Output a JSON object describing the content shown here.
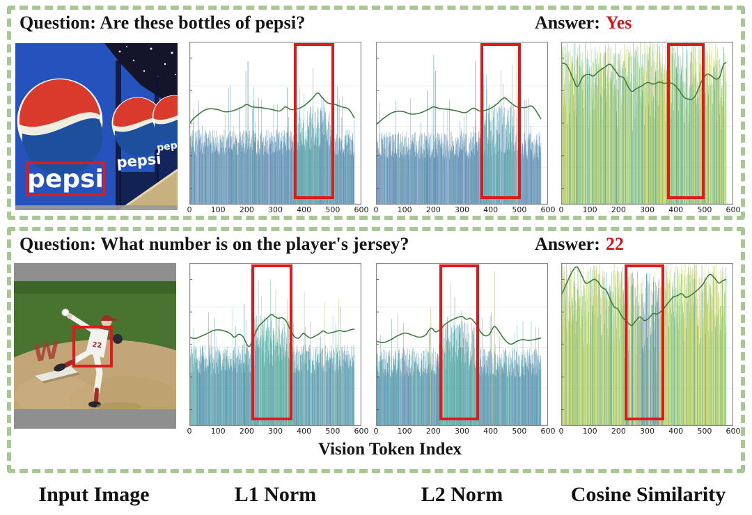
{
  "panels": [
    {
      "question": "Question: Are these bottles of pepsi?",
      "answer_label": "Answer:",
      "answer": "Yes"
    },
    {
      "question": "Question: What number is on the player's jersey?",
      "answer_label": "Answer:",
      "answer": "22"
    }
  ],
  "footer_labels": [
    "Input Image",
    "L1 Norm",
    "L2 Norm",
    "Cosine Similarity"
  ],
  "x_axis_title": "Vision Token Index",
  "images": {
    "pepsi_wordmark": "pepsi",
    "jersey_number": "22",
    "mound_logo": "W"
  },
  "colors": {
    "highlight_box": "#e01a1a",
    "panel_border": "#a9c795",
    "answer_text": "#d11a1a",
    "line_green": "#3e7c3e",
    "bar_blue": "#4a7ba6",
    "bar_teal": "#3f9d9b",
    "bar_yellow_green": "#ccd65e"
  },
  "chart_data": [
    {
      "name": "l1-norm-example1",
      "type": "bar",
      "n": 576,
      "x_domain": [
        0,
        600
      ],
      "x_ticks": [
        "0",
        "100",
        "200",
        "300",
        "400",
        "500",
        "600"
      ],
      "highlight_box": [
        365,
        505
      ],
      "seed": 7,
      "bars": {
        "h": [
          0.3,
          0.46
        ],
        "pow": 1,
        "tall_p": 0.05,
        "palette": [
          [
            "#4a7ba6",
            0.62
          ],
          [
            "#6f9cc4",
            0.16
          ],
          [
            "#8fb3d1",
            0.08
          ],
          [
            "#3f9d9b",
            0.14
          ]
        ],
        "box_h": [
          0.32,
          0.6
        ],
        "box_palette": [
          [
            "#3f9d9b",
            0.48
          ],
          [
            "#4a7ba6",
            0.3
          ],
          [
            "#57b0ad",
            0.12
          ],
          [
            "#8fb3d1",
            0.1
          ]
        ]
      },
      "vspikes": [
        [
          196,
          0.82,
          "#5aa07a"
        ],
        [
          203,
          0.88,
          "#4a7ba6"
        ],
        [
          340,
          0.72,
          "#3f9d9b"
        ],
        [
          173,
          0.6,
          "#4a7ba6"
        ]
      ],
      "line_color": "#3e7c3e",
      "line": [
        [
          0,
          0.5
        ],
        [
          25,
          0.545
        ],
        [
          60,
          0.585
        ],
        [
          95,
          0.585
        ],
        [
          125,
          0.57
        ],
        [
          155,
          0.578
        ],
        [
          185,
          0.6
        ],
        [
          200,
          0.615
        ],
        [
          220,
          0.6
        ],
        [
          250,
          0.595
        ],
        [
          285,
          0.585
        ],
        [
          315,
          0.575
        ],
        [
          335,
          0.6
        ],
        [
          352,
          0.585
        ],
        [
          372,
          0.585
        ],
        [
          398,
          0.605
        ],
        [
          425,
          0.645
        ],
        [
          447,
          0.685
        ],
        [
          462,
          0.66
        ],
        [
          482,
          0.625
        ],
        [
          508,
          0.615
        ],
        [
          532,
          0.6
        ],
        [
          556,
          0.585
        ],
        [
          576,
          0.53
        ]
      ]
    },
    {
      "name": "l2-norm-example1",
      "type": "bar",
      "n": 576,
      "x_domain": [
        0,
        600
      ],
      "x_ticks": [
        "0",
        "100",
        "200",
        "300",
        "400",
        "500",
        "600"
      ],
      "highlight_box": [
        365,
        505
      ],
      "seed": 13,
      "bars": {
        "h": [
          0.28,
          0.45
        ],
        "pow": 1,
        "tall_p": 0.05,
        "palette": [
          [
            "#4a7ba6",
            0.62
          ],
          [
            "#6f9cc4",
            0.16
          ],
          [
            "#8fb3d1",
            0.08
          ],
          [
            "#3f9d9b",
            0.14
          ]
        ],
        "box_h": [
          0.3,
          0.62
        ],
        "box_palette": [
          [
            "#3f9d9b",
            0.46
          ],
          [
            "#4a7ba6",
            0.32
          ],
          [
            "#57b0ad",
            0.12
          ],
          [
            "#8fb3d1",
            0.1
          ]
        ]
      },
      "vspikes": [
        [
          178,
          0.7,
          "#4a7ba6"
        ],
        [
          200,
          0.92,
          "#3f9d9b"
        ],
        [
          206,
          0.82,
          "#4a7ba6"
        ],
        [
          345,
          0.88,
          "#3f9d9b"
        ],
        [
          490,
          0.95,
          "#c9c06a"
        ]
      ],
      "line_color": "#3e7c3e",
      "line": [
        [
          0,
          0.49
        ],
        [
          30,
          0.535
        ],
        [
          62,
          0.568
        ],
        [
          92,
          0.572
        ],
        [
          122,
          0.556
        ],
        [
          152,
          0.562
        ],
        [
          183,
          0.585
        ],
        [
          200,
          0.6
        ],
        [
          222,
          0.59
        ],
        [
          252,
          0.585
        ],
        [
          282,
          0.575
        ],
        [
          312,
          0.565
        ],
        [
          340,
          0.592
        ],
        [
          362,
          0.575
        ],
        [
          392,
          0.585
        ],
        [
          420,
          0.615
        ],
        [
          447,
          0.655
        ],
        [
          467,
          0.63
        ],
        [
          492,
          0.6
        ],
        [
          520,
          0.596
        ],
        [
          546,
          0.602
        ],
        [
          576,
          0.525
        ]
      ]
    },
    {
      "name": "cosine-similarity-example1",
      "type": "bar",
      "n": 576,
      "x_domain": [
        0,
        600
      ],
      "x_ticks": [
        "0",
        "100",
        "200",
        "300",
        "400",
        "500",
        "600"
      ],
      "highlight_box": [
        370,
        500
      ],
      "seed": 21,
      "bars": {
        "h": [
          0.45,
          1.0
        ],
        "pow": 0.55,
        "tall_p": 0,
        "palette": [
          [
            "#ccd65e",
            0.34
          ],
          [
            "#bdcf4f",
            0.16
          ],
          [
            "#a8c95c",
            0.1
          ],
          [
            "#3f9d9b",
            0.2
          ],
          [
            "#62ad68",
            0.2
          ]
        ],
        "box_h": [
          0.45,
          1.0
        ],
        "box_palette": [
          [
            "#ccd65e",
            0.3
          ],
          [
            "#3f9d9b",
            0.28
          ],
          [
            "#62ad68",
            0.22
          ],
          [
            "#bdcf4f",
            0.2
          ]
        ]
      },
      "vspikes": [],
      "line_color": "#3e7c3e",
      "line": [
        [
          0,
          0.87
        ],
        [
          20,
          0.855
        ],
        [
          42,
          0.77
        ],
        [
          56,
          0.725
        ],
        [
          76,
          0.785
        ],
        [
          96,
          0.8
        ],
        [
          112,
          0.79
        ],
        [
          132,
          0.82
        ],
        [
          152,
          0.843
        ],
        [
          170,
          0.862
        ],
        [
          186,
          0.83
        ],
        [
          202,
          0.79
        ],
        [
          218,
          0.778
        ],
        [
          232,
          0.73
        ],
        [
          246,
          0.695
        ],
        [
          262,
          0.712
        ],
        [
          282,
          0.73
        ],
        [
          302,
          0.75
        ],
        [
          322,
          0.74
        ],
        [
          342,
          0.752
        ],
        [
          360,
          0.745
        ],
        [
          378,
          0.748
        ],
        [
          395,
          0.735
        ],
        [
          412,
          0.7
        ],
        [
          428,
          0.66
        ],
        [
          444,
          0.648
        ],
        [
          458,
          0.648
        ],
        [
          472,
          0.682
        ],
        [
          490,
          0.758
        ],
        [
          508,
          0.8
        ],
        [
          522,
          0.793
        ],
        [
          538,
          0.772
        ],
        [
          552,
          0.782
        ],
        [
          566,
          0.858
        ],
        [
          576,
          0.872
        ]
      ]
    },
    {
      "name": "l1-norm-example2",
      "type": "bar",
      "n": 576,
      "x_domain": [
        0,
        600
      ],
      "x_ticks": [
        "0",
        "100",
        "200",
        "300",
        "400",
        "500",
        "600"
      ],
      "highlight_box": [
        215,
        360
      ],
      "seed": 31,
      "bars": {
        "h": [
          0.32,
          0.5
        ],
        "pow": 1,
        "tall_p": 0.05,
        "palette": [
          [
            "#3f8fa0",
            0.4
          ],
          [
            "#4a7ba6",
            0.32
          ],
          [
            "#5fb3ae",
            0.18
          ],
          [
            "#8fc3cf",
            0.1
          ]
        ],
        "box_h": [
          0.36,
          0.68
        ],
        "box_palette": [
          [
            "#3fa393",
            0.46
          ],
          [
            "#49b3a3",
            0.22
          ],
          [
            "#4a7ba6",
            0.2
          ],
          [
            "#8fc3cf",
            0.12
          ]
        ]
      },
      "vspikes": [
        [
          190,
          0.75,
          "#5aa07a"
        ],
        [
          250,
          0.8,
          "#c9cd7a"
        ],
        [
          300,
          0.84,
          "#c9cd7a"
        ],
        [
          340,
          0.78,
          "#c9cd7a"
        ],
        [
          400,
          0.82,
          "#c9cd7a"
        ],
        [
          470,
          0.76,
          "#c9cd7a"
        ],
        [
          520,
          0.78,
          "#c9cd7a"
        ]
      ],
      "line_color": "#3e7c3e",
      "line": [
        [
          0,
          0.545
        ],
        [
          20,
          0.537
        ],
        [
          42,
          0.552
        ],
        [
          62,
          0.567
        ],
        [
          82,
          0.585
        ],
        [
          102,
          0.59
        ],
        [
          122,
          0.583
        ],
        [
          142,
          0.568
        ],
        [
          157,
          0.545
        ],
        [
          172,
          0.563
        ],
        [
          187,
          0.548
        ],
        [
          202,
          0.497
        ],
        [
          212,
          0.493
        ],
        [
          227,
          0.558
        ],
        [
          242,
          0.612
        ],
        [
          257,
          0.638
        ],
        [
          272,
          0.664
        ],
        [
          287,
          0.684
        ],
        [
          297,
          0.672
        ],
        [
          312,
          0.66
        ],
        [
          322,
          0.665
        ],
        [
          337,
          0.645
        ],
        [
          352,
          0.592
        ],
        [
          367,
          0.548
        ],
        [
          382,
          0.54
        ],
        [
          397,
          0.568
        ],
        [
          407,
          0.556
        ],
        [
          422,
          0.54
        ],
        [
          437,
          0.55
        ],
        [
          452,
          0.565
        ],
        [
          467,
          0.583
        ],
        [
          482,
          0.57
        ],
        [
          502,
          0.575
        ],
        [
          522,
          0.585
        ],
        [
          542,
          0.58
        ],
        [
          562,
          0.59
        ],
        [
          576,
          0.595
        ]
      ]
    },
    {
      "name": "l2-norm-example2",
      "type": "bar",
      "n": 576,
      "x_domain": [
        0,
        600
      ],
      "x_ticks": [
        "0",
        "100",
        "200",
        "300",
        "400",
        "500",
        "600"
      ],
      "highlight_box": [
        220,
        360
      ],
      "seed": 41,
      "bars": {
        "h": [
          0.3,
          0.48
        ],
        "pow": 1,
        "tall_p": 0.05,
        "palette": [
          [
            "#3f8fa0",
            0.4
          ],
          [
            "#4a7ba6",
            0.32
          ],
          [
            "#5fb3ae",
            0.18
          ],
          [
            "#8fc3cf",
            0.1
          ]
        ],
        "box_h": [
          0.34,
          0.64
        ],
        "box_palette": [
          [
            "#3fa393",
            0.46
          ],
          [
            "#49b3a3",
            0.22
          ],
          [
            "#4a7ba6",
            0.2
          ],
          [
            "#8fc3cf",
            0.12
          ]
        ]
      },
      "vspikes": [
        [
          190,
          0.72,
          "#d2b75a"
        ],
        [
          412,
          0.95,
          "#d2a94a"
        ],
        [
          430,
          0.55,
          "#d2b75a"
        ]
      ],
      "line_color": "#3e7c3e",
      "line": [
        [
          0,
          0.52
        ],
        [
          26,
          0.512
        ],
        [
          52,
          0.53
        ],
        [
          78,
          0.556
        ],
        [
          102,
          0.57
        ],
        [
          126,
          0.558
        ],
        [
          150,
          0.545
        ],
        [
          172,
          0.557
        ],
        [
          192,
          0.6
        ],
        [
          207,
          0.578
        ],
        [
          222,
          0.59
        ],
        [
          242,
          0.625
        ],
        [
          262,
          0.648
        ],
        [
          282,
          0.664
        ],
        [
          300,
          0.672
        ],
        [
          315,
          0.655
        ],
        [
          330,
          0.66
        ],
        [
          347,
          0.63
        ],
        [
          362,
          0.585
        ],
        [
          378,
          0.555
        ],
        [
          395,
          0.562
        ],
        [
          412,
          0.61
        ],
        [
          427,
          0.585
        ],
        [
          442,
          0.545
        ],
        [
          457,
          0.515
        ],
        [
          472,
          0.502
        ],
        [
          492,
          0.52
        ],
        [
          512,
          0.53
        ],
        [
          532,
          0.525
        ],
        [
          552,
          0.53
        ],
        [
          576,
          0.54
        ]
      ]
    },
    {
      "name": "cosine-similarity-example2",
      "type": "bar",
      "n": 576,
      "x_domain": [
        0,
        600
      ],
      "x_ticks": [
        "0",
        "100",
        "200",
        "300",
        "400",
        "500",
        "600"
      ],
      "highlight_box": [
        220,
        360
      ],
      "seed": 51,
      "bars": {
        "h": [
          0.45,
          1.0
        ],
        "pow": 0.5,
        "tall_p": 0,
        "palette": [
          [
            "#ccd65e",
            0.4
          ],
          [
            "#bdcf4f",
            0.18
          ],
          [
            "#9cc45a",
            0.12
          ],
          [
            "#62ad68",
            0.18
          ],
          [
            "#3f9d9b",
            0.12
          ]
        ],
        "box_h": [
          0.3,
          0.95
        ],
        "box_palette": [
          [
            "#4a7ba6",
            0.34
          ],
          [
            "#ccd65e",
            0.26
          ],
          [
            "#3f9d9b",
            0.16
          ],
          [
            "#62ad68",
            0.14
          ],
          [
            "#bdcf4f",
            0.1
          ]
        ]
      },
      "vspikes": [],
      "line_color": "#3e7c3e",
      "line": [
        [
          0,
          0.8
        ],
        [
          20,
          0.88
        ],
        [
          40,
          0.952
        ],
        [
          55,
          0.975
        ],
        [
          70,
          0.93
        ],
        [
          85,
          0.878
        ],
        [
          100,
          0.885
        ],
        [
          115,
          0.9
        ],
        [
          128,
          0.885
        ],
        [
          142,
          0.85
        ],
        [
          156,
          0.835
        ],
        [
          170,
          0.782
        ],
        [
          184,
          0.733
        ],
        [
          198,
          0.716
        ],
        [
          214,
          0.667
        ],
        [
          230,
          0.64
        ],
        [
          245,
          0.617
        ],
        [
          260,
          0.645
        ],
        [
          275,
          0.67
        ],
        [
          290,
          0.647
        ],
        [
          305,
          0.66
        ],
        [
          320,
          0.69
        ],
        [
          332,
          0.686
        ],
        [
          346,
          0.7
        ],
        [
          360,
          0.726
        ],
        [
          375,
          0.76
        ],
        [
          390,
          0.79
        ],
        [
          405,
          0.8
        ],
        [
          420,
          0.812
        ],
        [
          435,
          0.79
        ],
        [
          450,
          0.8
        ],
        [
          465,
          0.82
        ],
        [
          480,
          0.842
        ],
        [
          495,
          0.872
        ],
        [
          510,
          0.916
        ],
        [
          521,
          0.93
        ],
        [
          536,
          0.906
        ],
        [
          550,
          0.877
        ],
        [
          562,
          0.89
        ],
        [
          576,
          0.9
        ]
      ]
    }
  ]
}
